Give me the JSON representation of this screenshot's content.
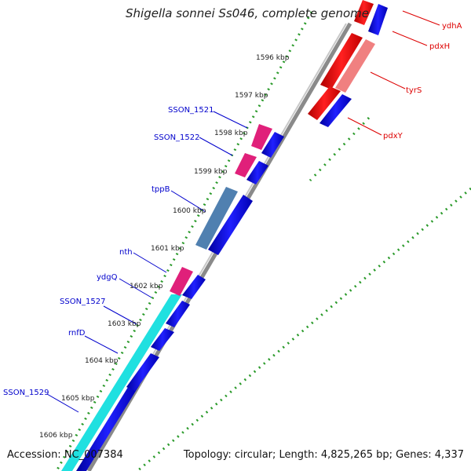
{
  "title": "Shigella sonnei Ss046, complete genome",
  "footer": {
    "accession": "Accession: NC_007384",
    "topology": "Topology: circular; Length: 4,825,265 bp; Genes: 4,337"
  },
  "scale": {
    "ticks": [
      "1596 kbp",
      "1597 kbp",
      "1598 kbp",
      "1599 kbp",
      "1600 kbp",
      "1601 kbp",
      "1602 kbp",
      "1603 kbp",
      "1604 kbp",
      "1605 kbp",
      "1606 kbp"
    ]
  },
  "genes_left": [
    {
      "name": "SSON_1521",
      "color": "#0000cc"
    },
    {
      "name": "SSON_1522",
      "color": "#0000cc"
    },
    {
      "name": "tppB",
      "color": "#0000cc"
    },
    {
      "name": "nth",
      "color": "#0000cc"
    },
    {
      "name": "ydgQ",
      "color": "#0000cc"
    },
    {
      "name": "SSON_1527",
      "color": "#0000cc"
    },
    {
      "name": "rnfD",
      "color": "#0000cc"
    },
    {
      "name": "SSON_1529",
      "color": "#0000cc"
    }
  ],
  "genes_right": [
    {
      "name": "ydhA",
      "color": "#dd0000"
    },
    {
      "name": "pdxH",
      "color": "#dd0000"
    },
    {
      "name": "tyrS",
      "color": "#dd0000"
    },
    {
      "name": "pdxY",
      "color": "#dd0000"
    }
  ],
  "colors": {
    "cds_forward": "#0a0ae0",
    "cds_highlight": "#e0207a",
    "blue_grey": "#5080b0",
    "cyan": "#20e0e0",
    "red": "#ee1010",
    "salmon": "#f08080",
    "backbone": "#8a8a8a",
    "dots": "#2a9a2a"
  }
}
